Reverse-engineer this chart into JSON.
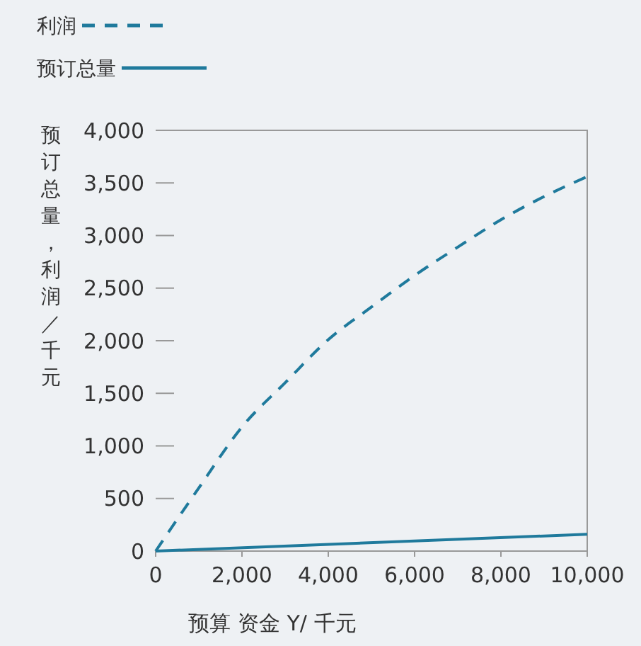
{
  "chart_data": {
    "type": "line",
    "xlabel": "预算 资金 Y/ 千元",
    "ylabel": "预订总量，利润／千元",
    "x": [
      0,
      1000,
      2000,
      3000,
      4000,
      5000,
      6000,
      7000,
      8000,
      9000,
      10000
    ],
    "series": [
      {
        "name": "利润",
        "color": "#1f7a9c",
        "line_style": "dashed",
        "values": [
          0,
          600,
          1180,
          1600,
          2010,
          2320,
          2620,
          2890,
          3150,
          3370,
          3560
        ]
      },
      {
        "name": "预订总量",
        "color": "#1f7a9c",
        "line_style": "solid",
        "x": [
          0,
          10000
        ],
        "values": [
          0,
          160
        ]
      }
    ],
    "xlim": [
      0,
      10000
    ],
    "xticks": [
      {
        "value": 0,
        "label": "0"
      },
      {
        "value": 2000,
        "label": "2,000"
      },
      {
        "value": 4000,
        "label": "4,000"
      },
      {
        "value": 6000,
        "label": "6,000"
      },
      {
        "value": 8000,
        "label": "8,000"
      },
      {
        "value": 10000,
        "label": "10,000"
      }
    ],
    "ylim": [
      0,
      4000
    ],
    "yticks": [
      {
        "value": 0,
        "label": "0"
      },
      {
        "value": 500,
        "label": "500"
      },
      {
        "value": 1000,
        "label": "1,000"
      },
      {
        "value": 1500,
        "label": "1,500"
      },
      {
        "value": 2000,
        "label": "2,000"
      },
      {
        "value": 2500,
        "label": "2,500"
      },
      {
        "value": 3000,
        "label": "3,000"
      },
      {
        "value": 3500,
        "label": "3,500"
      },
      {
        "value": 4000,
        "label": "4,000"
      }
    ],
    "grid": false,
    "legend": "top left",
    "marker": "none"
  }
}
